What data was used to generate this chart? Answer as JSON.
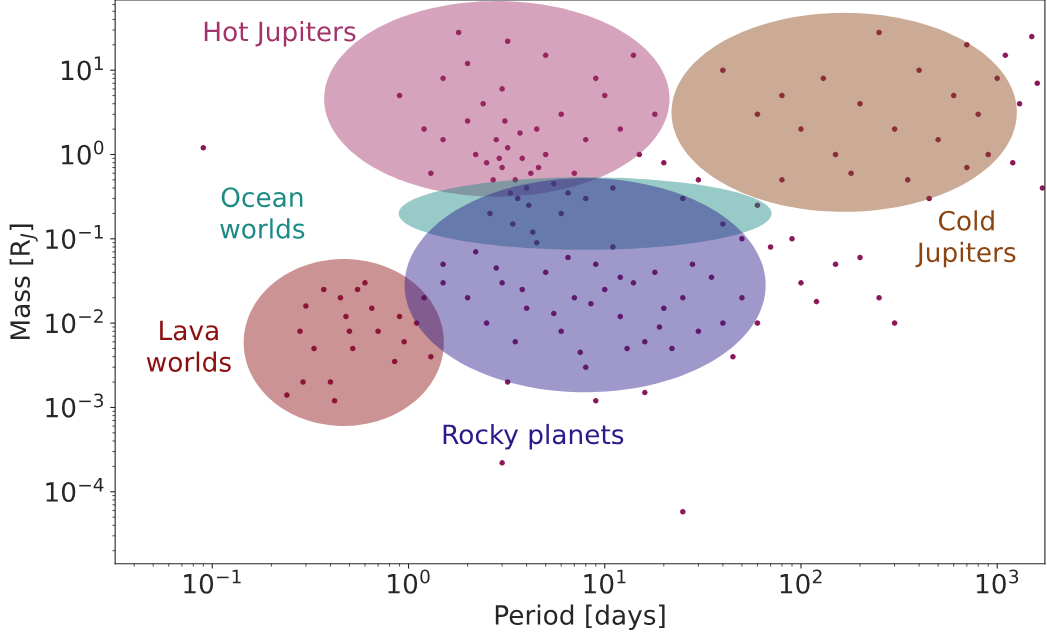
{
  "chart_data": {
    "type": "scatter",
    "xlabel": "Period [days]",
    "ylabel": "Mass [R$_{J}$]",
    "log": "xy",
    "xlim": [
      0.032,
      1750
    ],
    "ylim": [
      1.4e-05,
      68
    ],
    "xticks": [
      {
        "value": 0.1,
        "label": "10$^{−1}$"
      },
      {
        "value": 1,
        "label": "10$^{0}$"
      },
      {
        "value": 10,
        "label": "10$^{1}$"
      },
      {
        "value": 100,
        "label": "10$^{2}$"
      },
      {
        "value": 1000,
        "label": "10$^{3}$"
      }
    ],
    "yticks": [
      {
        "value": 0.0001,
        "label": "10$^{−4}$"
      },
      {
        "value": 0.001,
        "label": "10$^{−3}$"
      },
      {
        "value": 0.01,
        "label": "10$^{−2}$"
      },
      {
        "value": 0.1,
        "label": "10$^{−1}$"
      },
      {
        "value": 1,
        "label": "10$^{0}$"
      },
      {
        "value": 10,
        "label": "10$^{1}$"
      }
    ],
    "grid": false,
    "legend": false,
    "marker": "circle",
    "series": [
      {
        "color": "#8b1a5a",
        "x": [
          0.09,
          0.24,
          0.29,
          0.3,
          0.33,
          0.37,
          0.45,
          0.48,
          0.52,
          0.55,
          0.6,
          0.7,
          0.85,
          0.4,
          0.28,
          0.5,
          0.65,
          0.95,
          1.2,
          1.5,
          0.9,
          0.42,
          1.8,
          3.2,
          0.9,
          1.2,
          1.5,
          2,
          2.2,
          2.5,
          2.8,
          3,
          3.2,
          3.5,
          3.8,
          4,
          4.2,
          4.5,
          5,
          2.7,
          3.3,
          3.6,
          4.1,
          6,
          8,
          10,
          12,
          15,
          20,
          9,
          7,
          5.5,
          2.4,
          3,
          1.5,
          2,
          1.3,
          2.9,
          3.1,
          3.7,
          4.6,
          6.5,
          11,
          25,
          30,
          18,
          14,
          5,
          2.6,
          3.4,
          4.3,
          6,
          8,
          40,
          50,
          60,
          70,
          80,
          1.5,
          2,
          2.5,
          3,
          3.5,
          4,
          5,
          6,
          7,
          8,
          9,
          10,
          12,
          14,
          16,
          18,
          20,
          25,
          30,
          35,
          40,
          50,
          2.2,
          4.5,
          6.5,
          11,
          13,
          1.1,
          1.3,
          22,
          28,
          45,
          3.2,
          9,
          16,
          60,
          5.5,
          8.5,
          12,
          2.8,
          7.5,
          19,
          3.8,
          3,
          25,
          100,
          120,
          150,
          200,
          300,
          90,
          250,
          40,
          60,
          80,
          100,
          130,
          150,
          200,
          250,
          300,
          400,
          500,
          600,
          700,
          800,
          1000,
          1100,
          1300,
          1500,
          1700,
          900,
          350,
          1200,
          1600,
          450,
          180,
          700
        ],
        "values": [
          1.2,
          0.0014,
          0.002,
          0.016,
          0.005,
          0.025,
          0.02,
          0.012,
          0.005,
          0.025,
          0.03,
          0.008,
          0.0035,
          0.002,
          0.008,
          0.008,
          0.015,
          0.006,
          0.02,
          0.03,
          0.012,
          0.0012,
          28,
          22,
          5,
          2,
          1.5,
          2.5,
          1,
          0.8,
          1.5,
          0.7,
          1.2,
          0.5,
          0.9,
          0.4,
          0.6,
          2,
          1,
          0.5,
          0.35,
          0.3,
          0.25,
          3,
          1.5,
          5,
          2,
          1,
          0.8,
          8,
          0.6,
          0.45,
          4,
          6,
          8,
          12,
          0.6,
          0.9,
          2.5,
          1.8,
          0.7,
          0.35,
          0.4,
          0.3,
          0.5,
          3,
          15,
          15,
          0.2,
          0.15,
          0.12,
          0.2,
          0.3,
          0.15,
          0.1,
          0.25,
          0.08,
          0.5,
          0.05,
          0.02,
          0.01,
          0.03,
          0.006,
          0.015,
          0.04,
          0.008,
          0.02,
          0.003,
          0.05,
          0.025,
          0.012,
          0.03,
          0.006,
          0.04,
          0.015,
          0.02,
          0.008,
          0.035,
          0.01,
          0.02,
          0.07,
          0.09,
          0.06,
          0.08,
          0.005,
          0.01,
          0.004,
          0.005,
          0.05,
          0.004,
          0.002,
          0.0012,
          0.0015,
          0.01,
          0.013,
          0.017,
          0.035,
          0.045,
          0.0045,
          0.009,
          0.025,
          0.00022,
          5.8e-05,
          0.03,
          0.018,
          0.05,
          0.06,
          0.01,
          0.1,
          0.02,
          10,
          3,
          5,
          2,
          8,
          1,
          4,
          28,
          2,
          10,
          1.5,
          5,
          20,
          3,
          8,
          15,
          4,
          25,
          0.4,
          1,
          0.5,
          0.8,
          7,
          0.3,
          0.6,
          0.7
        ]
      }
    ],
    "annotations": [
      "Hot Jupiters",
      "Ocean\nworlds",
      "Cold\nJupiters",
      "Lava\nworlds",
      "Rocky planets"
    ],
    "colors": [
      "#a3336b",
      "#1a8a85",
      "#8b4513",
      "#8b1010",
      "#2b1a8a"
    ]
  }
}
